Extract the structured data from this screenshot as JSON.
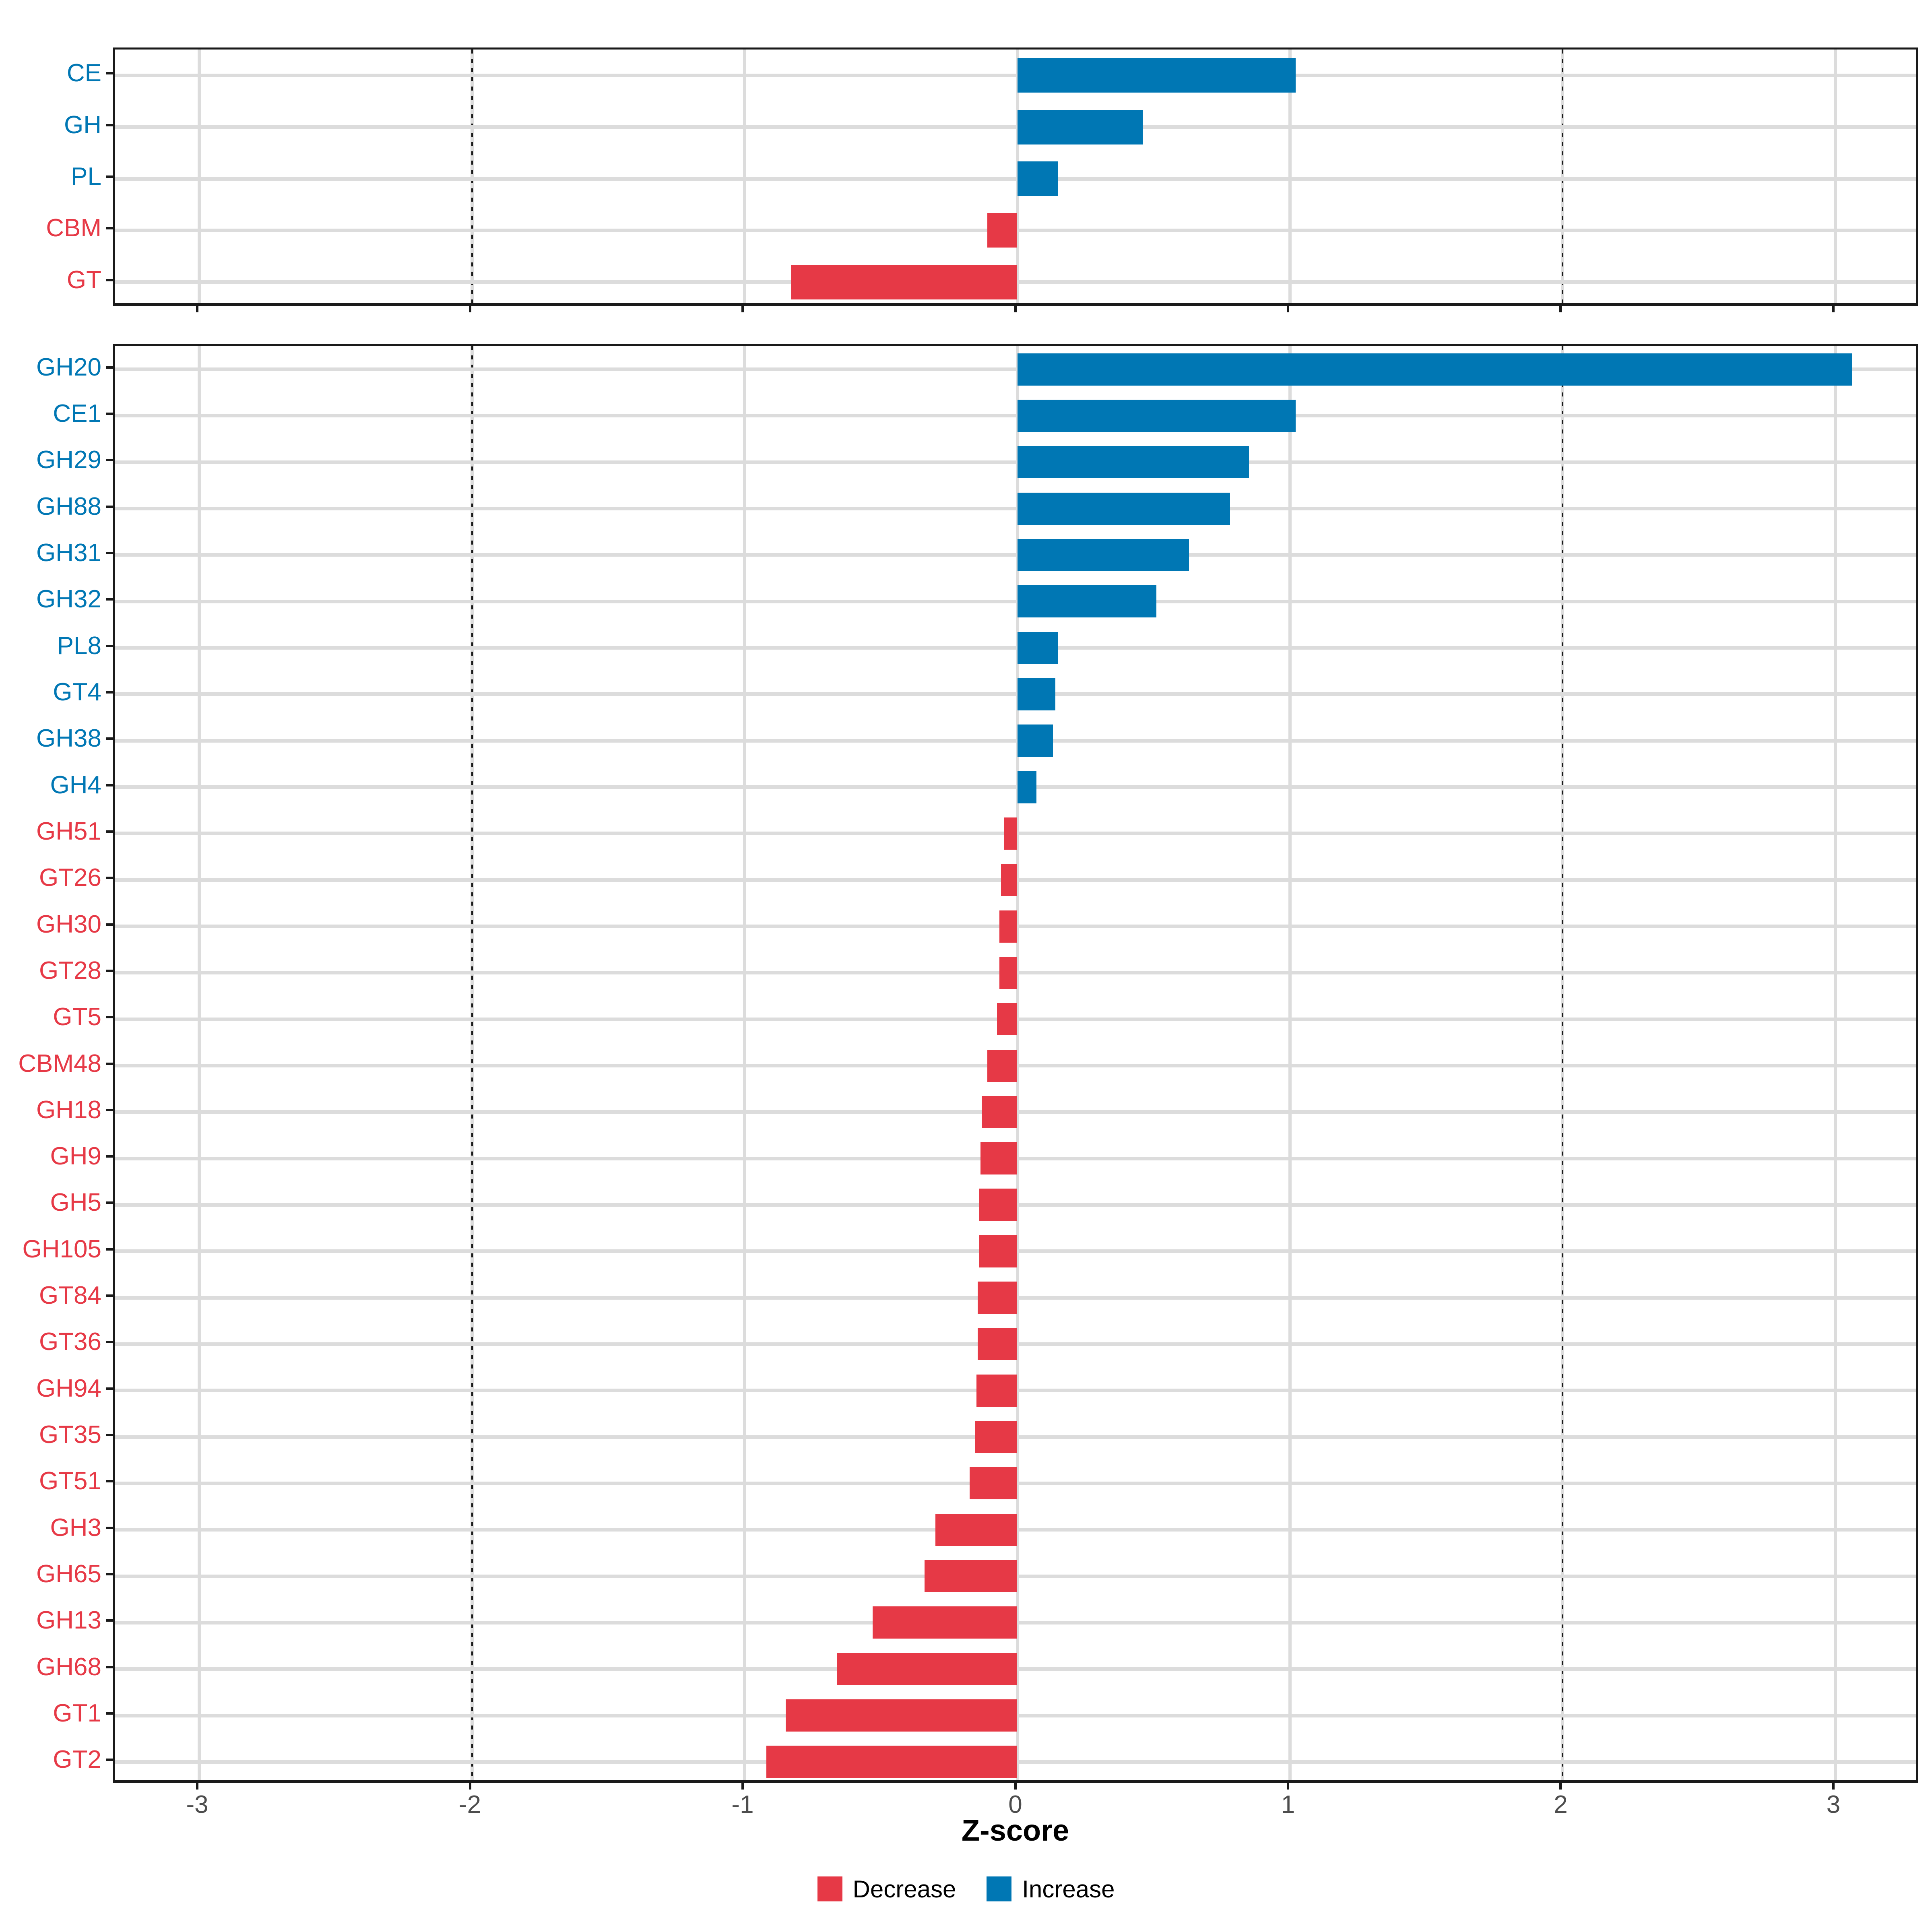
{
  "figure": {
    "background": "#FFFFFF"
  },
  "axis": {
    "x_title": "Z-score",
    "tick_labels": [
      "-3",
      "-2",
      "-1",
      "0",
      "1",
      "2",
      "3"
    ],
    "tick_label_color": "#4D4D4D"
  },
  "legend": {
    "items": [
      {
        "label": "Decrease",
        "key": "decrease",
        "color": "#E63946"
      },
      {
        "label": "Increase",
        "key": "increase",
        "color": "#0077B4"
      }
    ]
  },
  "colors": {
    "increase": "#0077B4",
    "decrease": "#E63946",
    "grid": "#DCDCDC",
    "panel_border": "#1A1A1A",
    "reference_line": "#1A1A1A",
    "tick_text": "#4D4D4D"
  },
  "chart_data": {
    "type": "bar",
    "orientation": "horizontal",
    "xlabel": "Z-score",
    "xlim": [
      -3.31,
      3.31
    ],
    "x_ticks": [
      -3,
      -2,
      -1,
      0,
      1,
      2,
      3
    ],
    "reference_lines_x": [
      -2,
      2
    ],
    "grid": true,
    "legend_position": "bottom",
    "series_colors": {
      "increase": "#0077B4",
      "decrease": "#E63946"
    },
    "panels": [
      {
        "name": "cazyme-class",
        "categories": [
          "CE",
          "GH",
          "PL",
          "CBM",
          "GT"
        ],
        "values": [
          1.02,
          0.46,
          0.15,
          -0.11,
          -0.83
        ]
      },
      {
        "name": "cazyme-family",
        "categories": [
          "GH20",
          "CE1",
          "GH29",
          "GH88",
          "GH31",
          "GH32",
          "PL8",
          "GT4",
          "GH38",
          "GH4",
          "GH51",
          "GT26",
          "GH30",
          "GT28",
          "GT5",
          "CBM48",
          "GH18",
          "GH9",
          "GH5",
          "GH105",
          "GT84",
          "GT36",
          "GH94",
          "GT35",
          "GT51",
          "GH3",
          "GH65",
          "GH13",
          "GH68",
          "GT1",
          "GT2"
        ],
        "values": [
          3.06,
          1.02,
          0.85,
          0.78,
          0.63,
          0.51,
          0.15,
          0.14,
          0.13,
          0.07,
          -0.05,
          -0.06,
          -0.065,
          -0.065,
          -0.075,
          -0.11,
          -0.13,
          -0.135,
          -0.14,
          -0.14,
          -0.145,
          -0.145,
          -0.15,
          -0.155,
          -0.175,
          -0.3,
          -0.34,
          -0.53,
          -0.66,
          -0.85,
          -0.92
        ]
      }
    ]
  }
}
